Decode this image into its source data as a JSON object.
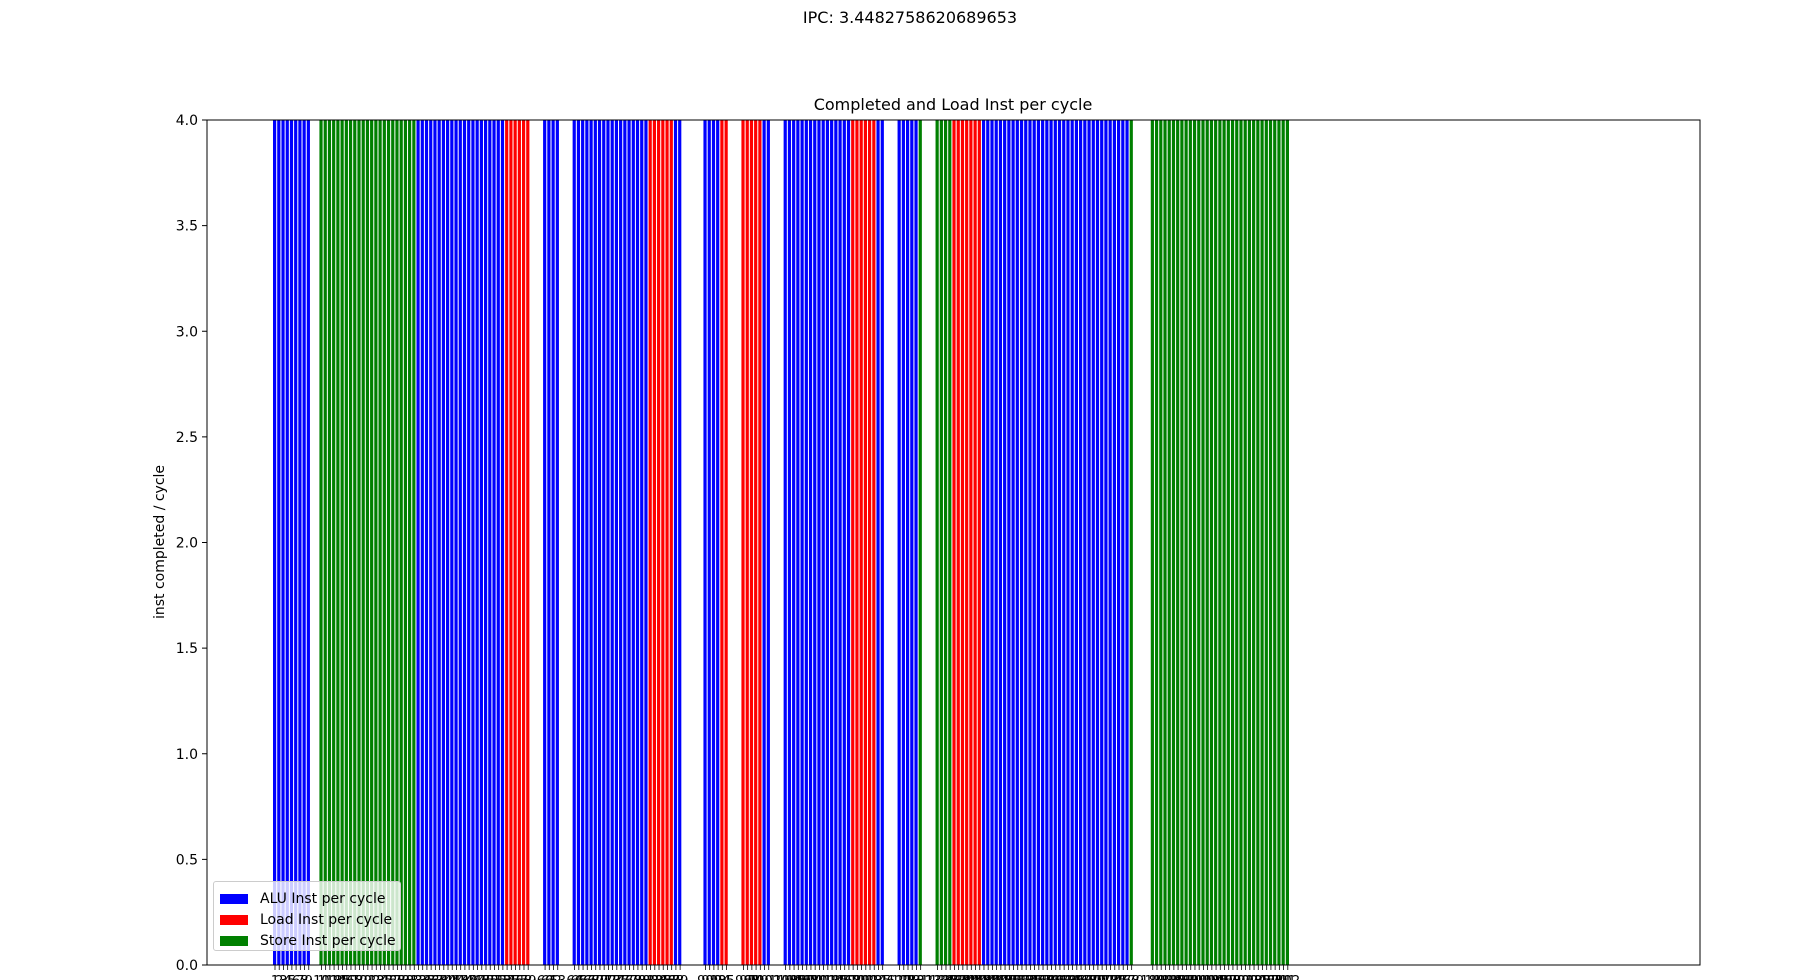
{
  "figure": {
    "suptitle": "IPC: 3.4482758620689653"
  },
  "chart_data": {
    "type": "bar",
    "title": "Completed and Load Inst per cycle",
    "xlabel": "",
    "ylabel": "inst completed / cycle",
    "ylim": [
      0,
      4.0
    ],
    "yticks": [
      "0.0",
      "0.5",
      "1.0",
      "1.5",
      "2.0",
      "2.5",
      "3.0",
      "3.5",
      "4.0"
    ],
    "grid": false,
    "legend_position": "lower-left",
    "series": [
      {
        "name": "ALU Inst per cycle",
        "color": "#0000ff"
      },
      {
        "name": "Load Inst per cycle",
        "color": "#ff0000"
      },
      {
        "name": "Store Inst per cycle",
        "color": "#008000"
      }
    ],
    "categories": [
      1,
      2,
      3,
      4,
      5,
      6,
      7,
      8,
      9,
      10,
      11,
      12,
      13,
      14,
      15,
      16,
      17,
      18,
      19,
      20,
      21,
      22,
      23,
      24,
      25,
      26,
      27,
      28,
      29,
      30,
      31,
      32,
      33,
      34,
      35,
      36,
      37,
      38,
      39,
      40,
      41,
      42,
      43,
      44,
      45,
      46,
      47,
      48,
      49,
      50,
      51,
      52,
      53,
      54,
      55,
      56,
      57,
      58,
      59,
      60,
      61,
      62,
      63,
      64,
      65,
      66,
      67,
      68,
      69,
      70,
      71,
      72,
      73,
      74,
      75,
      76,
      77,
      78,
      79,
      80,
      81,
      82,
      83,
      84,
      85,
      86,
      87,
      88,
      89,
      90,
      91,
      92,
      93,
      94,
      95,
      96,
      97,
      98,
      99,
      100,
      101,
      102,
      103,
      104,
      105,
      106,
      107,
      108,
      109,
      110,
      111,
      112,
      113,
      114,
      115,
      116,
      117,
      118,
      119,
      120,
      121,
      122,
      123,
      124,
      125,
      126,
      127,
      128,
      129,
      130,
      131,
      132,
      133,
      134,
      135,
      136,
      137,
      138,
      139,
      140,
      141,
      142,
      143,
      144,
      145,
      146,
      147,
      148,
      149,
      150,
      151,
      152,
      153,
      154,
      155,
      156,
      157,
      158,
      159,
      160,
      161,
      162,
      163,
      164,
      165,
      166,
      167,
      168,
      169,
      170,
      171,
      172,
      173,
      174,
      175,
      176,
      177,
      178,
      179,
      180,
      181,
      182,
      183,
      184,
      185,
      186,
      187,
      188,
      189,
      190,
      191,
      192,
      193,
      194,
      195,
      196,
      197,
      198,
      199,
      200,
      201,
      202,
      203,
      204,
      205,
      206,
      207,
      208,
      209,
      210,
      211,
      212
    ],
    "bar_types": "AAAAAAAAA__SSSSSSSSSSSSSSSSSSSSSSSAAAAAAAAAAAAAAAAAAAAALLLLLL___AAAA___AAAAAAAAAAAAAAAAAALLLLLLAA_____AAAALL___LLLLLAA___AAAAAAAAAAAAAAAALLLLLLAA___AAAAAS___SSSSLLLLLLLAAAAAAAAAAAAAAAAAAAAAAAAAAAAAAAAAAAS____SSSSSSSSSSSSSSSSSSSSSSSSSSSSSSSSSSSAAAAAAAAAAAAAAAAAAAAAAALLLLLLLL___AAAAAA___AAAAAAAAAAAAAAAAAAAAAAAALLLLLLAA___AAAALLL___LLLLAA___AAAAAAAAAAAALLLLLLLLL___AAAAAAS____SSSSLLLLLLAAAAAAAAAAAAAAAA",
    "bar_value": 4.0
  }
}
